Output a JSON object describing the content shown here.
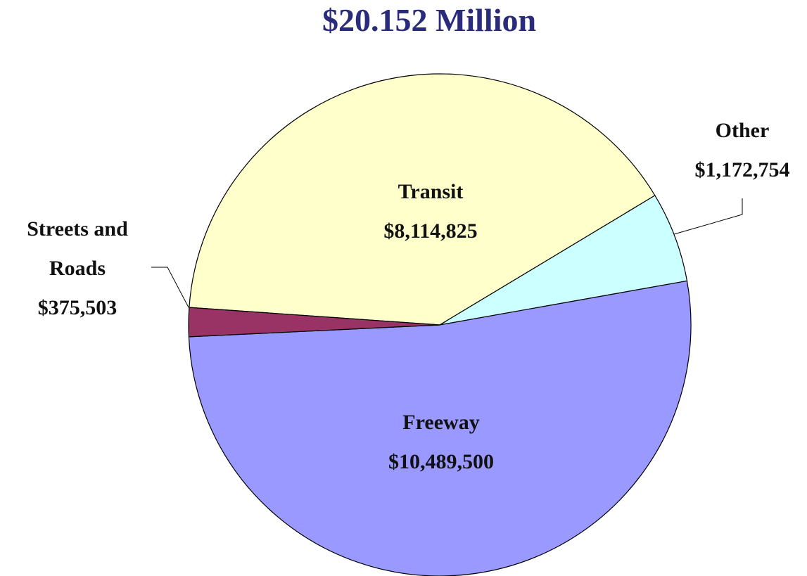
{
  "chart_data": {
    "type": "pie",
    "title": "$20.152 Million",
    "categories": [
      "Transit",
      "Other",
      "Freeway",
      "Streets and Roads"
    ],
    "values": [
      8114825,
      1172754,
      10489500,
      375503
    ],
    "value_labels": [
      "$8,114,825",
      "$1,172,754",
      "$10,489,500",
      "$375,503"
    ],
    "colors": [
      "#ffffcc",
      "#ccffff",
      "#9999ff",
      "#993366"
    ]
  }
}
